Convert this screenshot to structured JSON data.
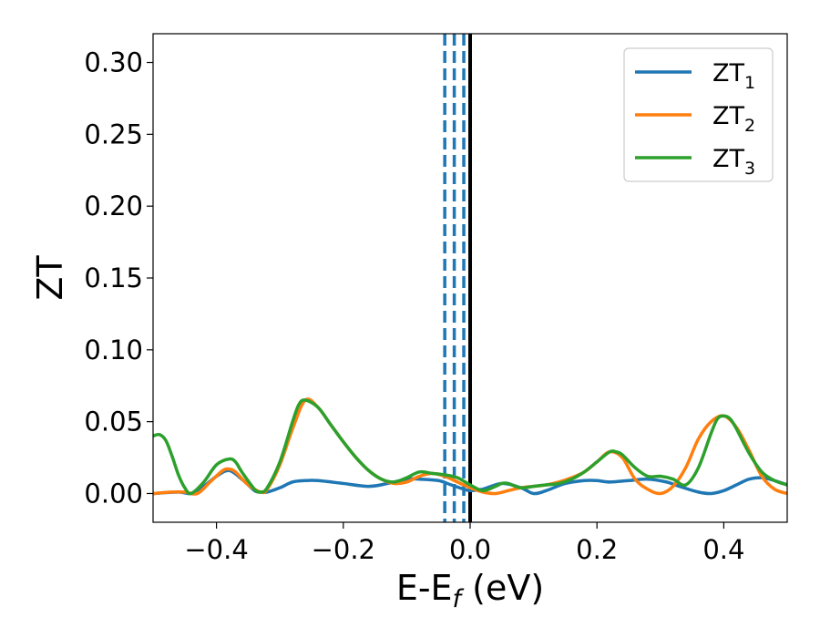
{
  "chart_data": {
    "type": "line",
    "xlabel": "E-E",
    "xlabel_sub": "f",
    "xlabel_unit": " (eV)",
    "ylabel": "ZT",
    "xlim": [
      -0.5,
      0.5
    ],
    "ylim": [
      -0.02,
      0.32
    ],
    "xticks": [
      {
        "value": -0.4,
        "label": "−0.4"
      },
      {
        "value": -0.2,
        "label": "−0.2"
      },
      {
        "value": 0.0,
        "label": "0.0"
      },
      {
        "value": 0.2,
        "label": "0.2"
      },
      {
        "value": 0.4,
        "label": "0.4"
      }
    ],
    "yticks": [
      {
        "value": 0.0,
        "label": "0.00"
      },
      {
        "value": 0.05,
        "label": "0.05"
      },
      {
        "value": 0.1,
        "label": "0.10"
      },
      {
        "value": 0.15,
        "label": "0.15"
      },
      {
        "value": 0.2,
        "label": "0.20"
      },
      {
        "value": 0.25,
        "label": "0.25"
      },
      {
        "value": 0.3,
        "label": "0.30"
      }
    ],
    "legend_position": "top-right",
    "vertical_lines": [
      {
        "x": -0.04,
        "style": "dashed",
        "color": "#1f77b4"
      },
      {
        "x": -0.025,
        "style": "dashed",
        "color": "#1f77b4"
      },
      {
        "x": -0.01,
        "style": "dashed",
        "color": "#1f77b4"
      },
      {
        "x": 0.0,
        "style": "solid",
        "color": "#000000"
      }
    ],
    "series": [
      {
        "name": "ZT",
        "name_sub": "1",
        "color": "#1f77b4",
        "x": [
          -0.5,
          -0.46,
          -0.44,
          -0.42,
          -0.4,
          -0.38,
          -0.36,
          -0.34,
          -0.33,
          -0.32,
          -0.3,
          -0.28,
          -0.26,
          -0.24,
          -0.2,
          -0.16,
          -0.13,
          -0.1,
          -0.08,
          -0.05,
          -0.03,
          -0.01,
          0.0,
          0.02,
          0.05,
          0.08,
          0.1,
          0.12,
          0.15,
          0.18,
          0.2,
          0.22,
          0.25,
          0.28,
          0.31,
          0.33,
          0.36,
          0.38,
          0.4,
          0.42,
          0.44,
          0.46,
          0.48,
          0.5
        ],
        "y": [
          0.0,
          0.001,
          0.0,
          0.005,
          0.012,
          0.016,
          0.01,
          0.002,
          0.001,
          0.001,
          0.004,
          0.008,
          0.009,
          0.009,
          0.007,
          0.005,
          0.007,
          0.01,
          0.01,
          0.009,
          0.006,
          0.003,
          0.002,
          0.003,
          0.007,
          0.004,
          0.0,
          0.002,
          0.007,
          0.009,
          0.009,
          0.008,
          0.009,
          0.01,
          0.008,
          0.005,
          0.001,
          0.0,
          0.002,
          0.006,
          0.01,
          0.011,
          0.009,
          0.006
        ]
      },
      {
        "name": "ZT",
        "name_sub": "2",
        "color": "#ff7f0e",
        "x": [
          -0.5,
          -0.47,
          -0.45,
          -0.43,
          -0.41,
          -0.39,
          -0.38,
          -0.37,
          -0.35,
          -0.33,
          -0.32,
          -0.3,
          -0.28,
          -0.26,
          -0.24,
          -0.22,
          -0.2,
          -0.18,
          -0.16,
          -0.14,
          -0.12,
          -0.1,
          -0.08,
          -0.06,
          -0.04,
          -0.02,
          0.0,
          0.02,
          0.04,
          0.06,
          0.08,
          0.1,
          0.12,
          0.14,
          0.16,
          0.18,
          0.2,
          0.22,
          0.24,
          0.26,
          0.28,
          0.3,
          0.32,
          0.34,
          0.36,
          0.38,
          0.4,
          0.42,
          0.44,
          0.46,
          0.48,
          0.5
        ],
        "y": [
          0.0,
          0.001,
          0.001,
          0.0,
          0.008,
          0.016,
          0.017,
          0.015,
          0.006,
          0.001,
          0.003,
          0.02,
          0.045,
          0.065,
          0.06,
          0.048,
          0.036,
          0.025,
          0.016,
          0.01,
          0.007,
          0.008,
          0.012,
          0.014,
          0.012,
          0.008,
          0.004,
          0.001,
          0.0,
          0.002,
          0.004,
          0.005,
          0.006,
          0.008,
          0.011,
          0.015,
          0.022,
          0.029,
          0.025,
          0.01,
          0.003,
          0.0,
          0.005,
          0.018,
          0.038,
          0.05,
          0.054,
          0.046,
          0.03,
          0.012,
          0.003,
          0.0
        ]
      },
      {
        "name": "ZT",
        "name_sub": "3",
        "color": "#2ca02c",
        "x": [
          -0.5,
          -0.49,
          -0.48,
          -0.47,
          -0.46,
          -0.45,
          -0.44,
          -0.42,
          -0.4,
          -0.38,
          -0.37,
          -0.36,
          -0.34,
          -0.33,
          -0.32,
          -0.3,
          -0.28,
          -0.27,
          -0.26,
          -0.24,
          -0.22,
          -0.2,
          -0.18,
          -0.16,
          -0.14,
          -0.12,
          -0.1,
          -0.08,
          -0.06,
          -0.04,
          -0.02,
          0.0,
          0.02,
          0.04,
          0.05,
          0.06,
          0.08,
          0.1,
          0.12,
          0.14,
          0.16,
          0.18,
          0.2,
          0.22,
          0.23,
          0.24,
          0.26,
          0.28,
          0.3,
          0.32,
          0.34,
          0.36,
          0.38,
          0.39,
          0.4,
          0.41,
          0.42,
          0.44,
          0.46,
          0.48,
          0.5
        ],
        "y": [
          0.04,
          0.041,
          0.037,
          0.026,
          0.013,
          0.004,
          0.0,
          0.008,
          0.02,
          0.024,
          0.022,
          0.015,
          0.003,
          0.001,
          0.004,
          0.022,
          0.05,
          0.062,
          0.065,
          0.06,
          0.048,
          0.036,
          0.025,
          0.016,
          0.01,
          0.008,
          0.011,
          0.015,
          0.014,
          0.013,
          0.011,
          0.006,
          0.002,
          0.005,
          0.007,
          0.007,
          0.004,
          0.005,
          0.006,
          0.007,
          0.01,
          0.015,
          0.022,
          0.029,
          0.029,
          0.027,
          0.018,
          0.012,
          0.012,
          0.01,
          0.006,
          0.018,
          0.042,
          0.052,
          0.054,
          0.052,
          0.045,
          0.028,
          0.015,
          0.009,
          0.006
        ]
      }
    ]
  }
}
